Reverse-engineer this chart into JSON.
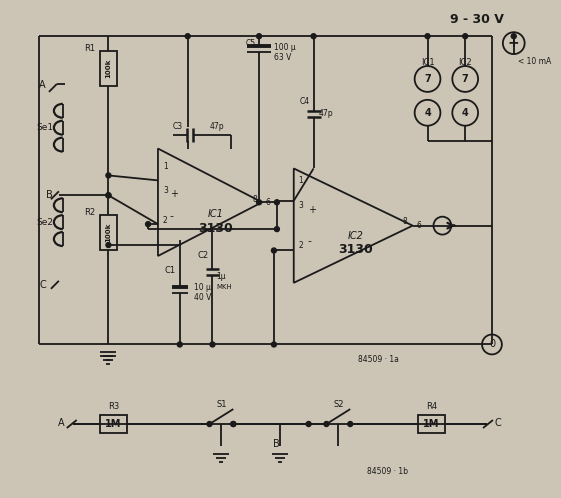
{
  "bg_color": "#ccc4b4",
  "line_color": "#1a1a1a",
  "figsize": [
    5.61,
    4.98
  ],
  "dpi": 100,
  "title": "9 - 30 V",
  "label_10mA": "< 10 mA",
  "label_84509_1a": "84509 · 1a",
  "label_84509_1b": "84509 · 1b",
  "label_IC1": "IC1",
  "label_IC2": "IC2",
  "label_3130": "3130",
  "label_C5_val": "100 µ",
  "label_C5_v": "63 V",
  "label_C3": "C3",
  "label_C3_val": "47p",
  "label_C4": "C4",
  "label_C4_val": "47p",
  "label_C2": "C2",
  "label_C2_val": "1µ",
  "label_C2_type": "MKH",
  "label_C1": "C1",
  "label_C1_val": "10 µ",
  "label_C1_v": "40 V",
  "label_R1": "R1",
  "label_R1_val": "100k",
  "label_R2": "R2",
  "label_R2_val": "100k",
  "label_R3": "R3",
  "label_R3_val": "1M",
  "label_R4": "R4",
  "label_R4_val": "1M",
  "label_S1": "S1",
  "label_S2": "S2",
  "label_A": "A",
  "label_B": "B",
  "label_C": "C",
  "label_Se1": "Se1",
  "label_Se2": "Se2"
}
